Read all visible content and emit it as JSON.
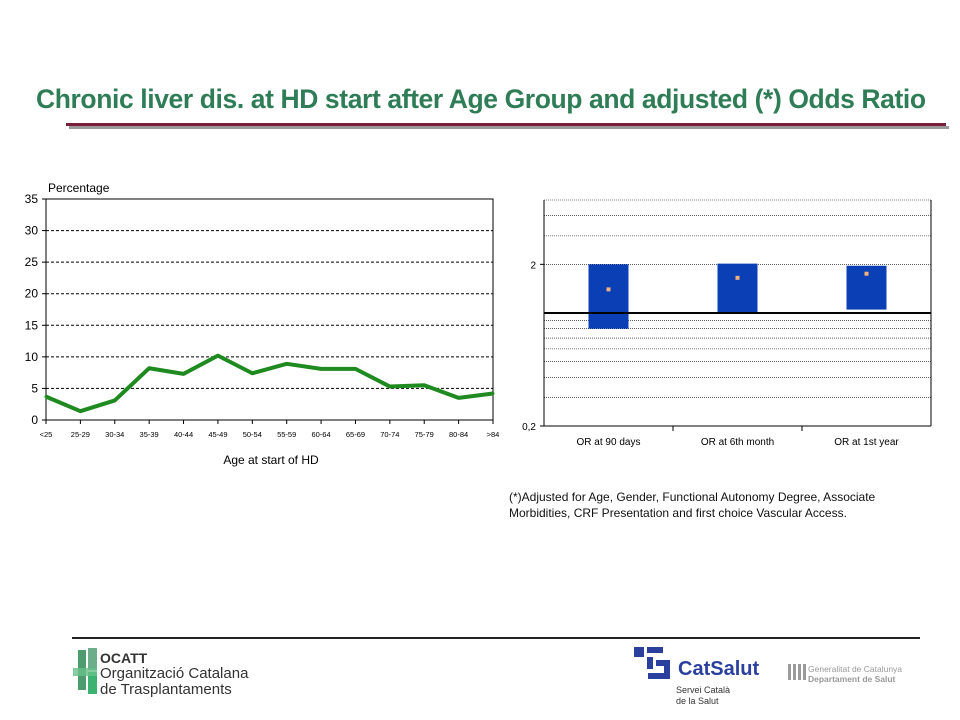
{
  "title": "Chronic liver dis. at HD start after Age Group and adjusted (*) Odds Ratio",
  "footnote": "(*)Adjusted for Age, Gender, Functional Autonomy Degree, Associate Morbidities, CRF Presentation and first choice Vascular Access.",
  "colors": {
    "title": "#2e7d57",
    "title_rule": "#7a1f3a",
    "line": "#1f8a1f",
    "or_box": "#0a3fb5",
    "or_point": "#f0b27a"
  },
  "footer": {
    "ocatt_abbr": "OCATT",
    "ocatt_line1": "Organització Catalana",
    "ocatt_line2": "de Trasplantaments",
    "catsalut_name": "CatSalut",
    "catsalut_sub1": "Servei Català",
    "catsalut_sub2": "de la Salut",
    "gencat_line1": "Generalitat de Catalunya",
    "gencat_line2": "Departament de Salut",
    "icons": [
      "ocatt-logo-icon",
      "catsalut-logo-icon",
      "gencat-logo-icon"
    ]
  },
  "chart_data": [
    {
      "type": "line",
      "ylabel": "Percentage",
      "xlabel": "Age at start of HD",
      "ylim": [
        0,
        35
      ],
      "yticks": [
        0,
        5,
        10,
        15,
        20,
        25,
        30,
        35
      ],
      "grid": true,
      "categories": [
        "<25",
        "25-29",
        "30-34",
        "35-39",
        "40-44",
        "45-49",
        "50-54",
        "55-59",
        "60-64",
        "65-69",
        "70-74",
        "75-79",
        "80-84",
        ">84"
      ],
      "values": [
        3.7,
        1.4,
        3.1,
        8.2,
        7.3,
        10.2,
        7.4,
        8.9,
        8.1,
        8.1,
        5.3,
        5.5,
        3.5,
        4.2
      ]
    },
    {
      "type": "box",
      "scale": "log",
      "ylim": [
        0.2,
        5
      ],
      "yticks": [
        {
          "value": 0.2,
          "label": "0,2"
        },
        {
          "value": 2,
          "label": "2"
        }
      ],
      "reference_line": 1,
      "categories": [
        "OR at 90 days",
        "OR at 6th month",
        "OR at 1st year"
      ],
      "series": [
        {
          "low": [
            0.8,
            0.99,
            1.05
          ],
          "high": [
            2.0,
            2.02,
            1.96
          ],
          "point": [
            1.4,
            1.65,
            1.75
          ]
        }
      ]
    }
  ]
}
